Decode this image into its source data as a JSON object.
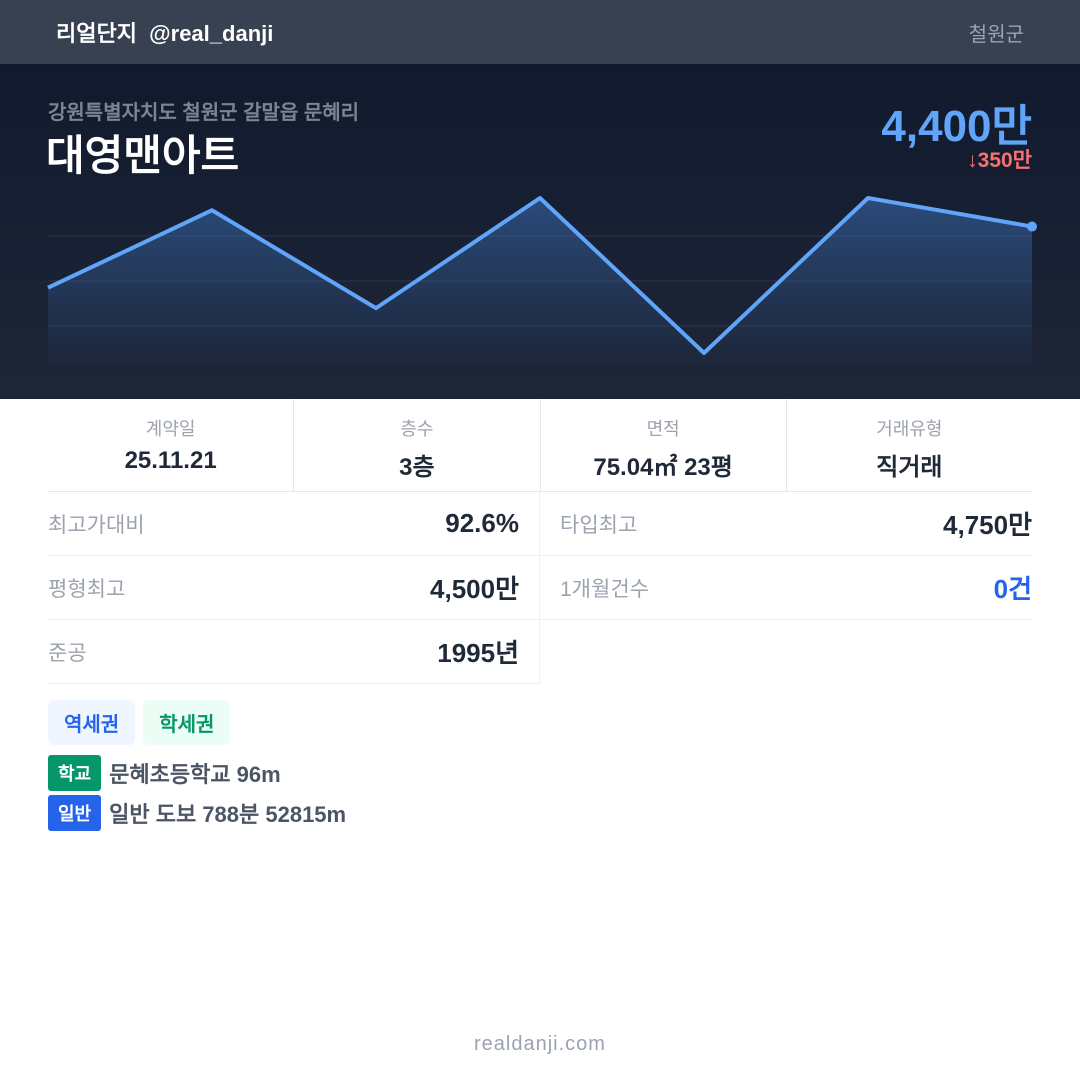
{
  "header": {
    "brand": "리얼단지  @real_danji",
    "region": "철원군"
  },
  "hero": {
    "address": "강원특별자치도 철원군 갈말읍 문혜리",
    "name": "대영맨아트",
    "price": "4,400만",
    "change": "↓350만",
    "line_color": "#60a5fa"
  },
  "chart_data": {
    "type": "area",
    "values_만": [
      3650,
      4600,
      3400,
      4750,
      2850,
      4750,
      4400
    ],
    "grid": true
  },
  "stats": [
    {
      "label": "계약일",
      "value": "25.11.21"
    },
    {
      "label": "층수",
      "value": "3층"
    },
    {
      "label": "면적",
      "value": "75.04㎡ 23평"
    },
    {
      "label": "거래유형",
      "value": "직거래"
    }
  ],
  "details": {
    "max_ratio": {
      "label": "최고가대비",
      "value": "92.6%"
    },
    "type_max": {
      "label": "타입최고",
      "value": "4,750만"
    },
    "size_max": {
      "label": "평형최고",
      "value": "4,500만"
    },
    "monthly_count": {
      "label": "1개월건수",
      "value": "0건"
    },
    "built": {
      "label": "준공",
      "value": "1995년"
    }
  },
  "tags": [
    "역세권",
    "학세권"
  ],
  "poi": [
    {
      "badge": "학교",
      "text": "문혜초등학교 96m",
      "color": "#059669"
    },
    {
      "badge": "일반",
      "text": "일반 도보 788분 52815m",
      "color": "#2563eb"
    }
  ],
  "footer": "realdanji.com"
}
